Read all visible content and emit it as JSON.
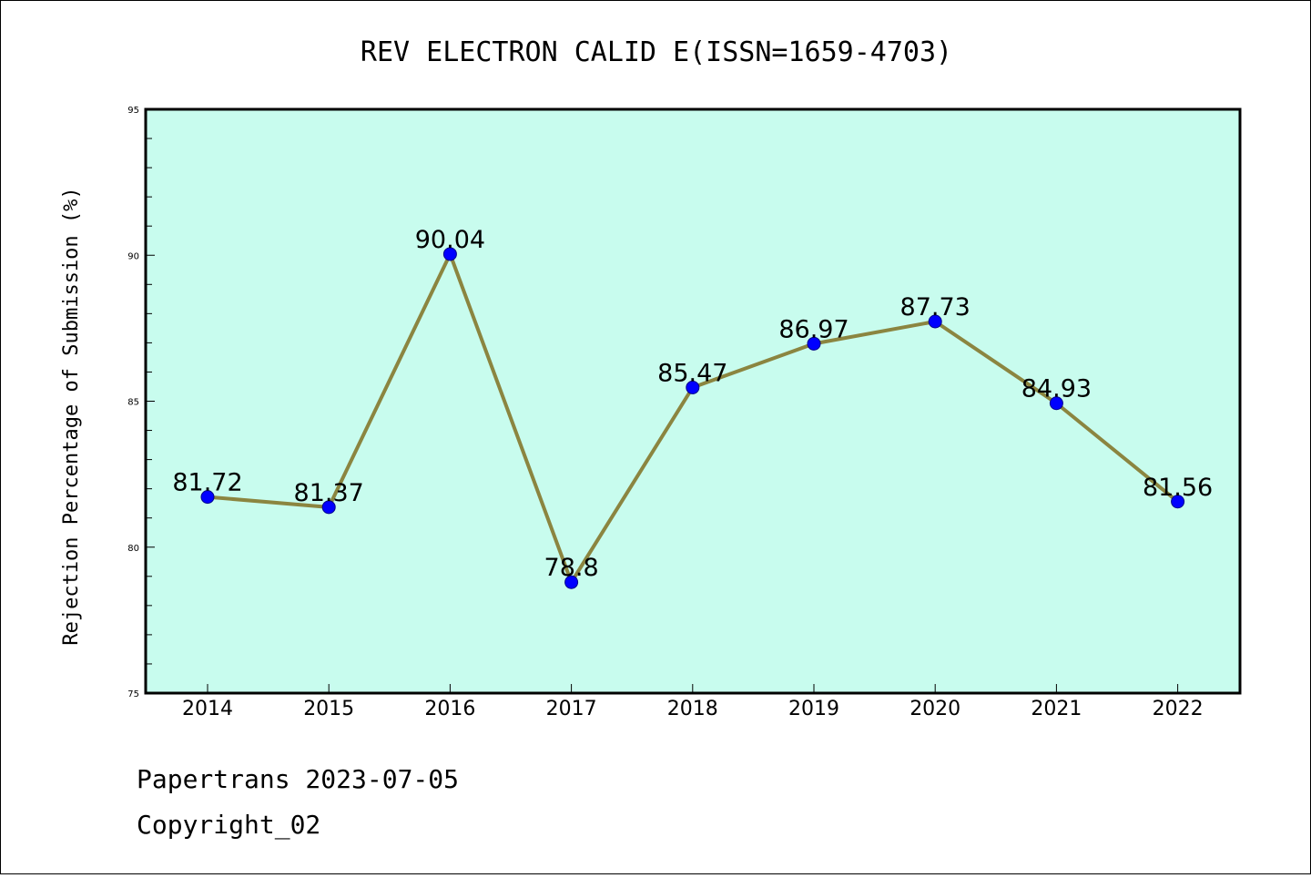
{
  "chart_data": {
    "type": "line",
    "title": "REV ELECTRON CALID E(ISSN=1659-4703)",
    "xlabel": "",
    "ylabel": "Rejection Percentage of Submission (%)",
    "categories": [
      "2014",
      "2015",
      "2016",
      "2017",
      "2018",
      "2019",
      "2020",
      "2021",
      "2022"
    ],
    "values": [
      81.72,
      81.37,
      90.04,
      78.8,
      85.47,
      86.97,
      87.73,
      84.93,
      81.56
    ],
    "data_labels": [
      "81.72",
      "81.37",
      "90.04",
      "78.8",
      "85.47",
      "86.97",
      "87.73",
      "84.93",
      "81.56"
    ],
    "ylim": [
      75,
      95
    ],
    "yticks": [
      "75",
      "80",
      "85",
      "90",
      "95"
    ],
    "grid": false,
    "colors": {
      "plot_background": "#c8fcee",
      "line": "#8b8540",
      "marker": "#0000ff"
    }
  },
  "footer": {
    "line1": "Papertrans 2023-07-05",
    "line2": "Copyright_02"
  }
}
